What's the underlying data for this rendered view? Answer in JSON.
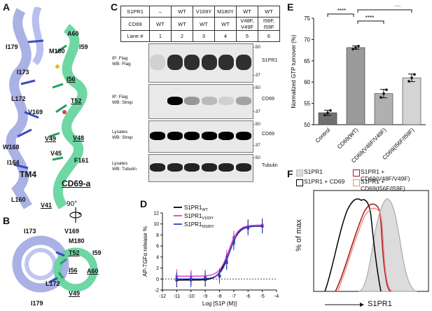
{
  "panels": {
    "A": {
      "letter": "A",
      "labels": {
        "A60": "A60",
        "I179": "I179",
        "M180": "M180",
        "I59": "I59",
        "I173": "I173",
        "I56": "I56",
        "L172": "L172",
        "T52": "T52",
        "V169": "V169",
        "V49": "V49",
        "V48": "V48",
        "W168": "W168",
        "V45": "V45",
        "I164": "I164",
        "F161": "F161",
        "TM4": "TM4",
        "CD69a": "CD69-a",
        "L160": "L160",
        "V41": "V41"
      },
      "rotation": "90°"
    },
    "B": {
      "letter": "B",
      "labels": {
        "I173": "I173",
        "V169": "V169",
        "M180": "M180",
        "T52": "T52",
        "I59": "I59",
        "I56": "I56",
        "A60": "A60",
        "L172": "L172",
        "V49": "V49",
        "I179": "I179"
      }
    },
    "C": {
      "letter": "C",
      "rows": [
        {
          "name": "S1PR1",
          "cells": [
            "–",
            "WT",
            "V169Y",
            "M180Y",
            "WT",
            "WT"
          ]
        },
        {
          "name": "CD69",
          "cells": [
            "WT",
            "WT",
            "WT",
            "WT",
            "V48F,\nV49F",
            "I56F,\nI59F"
          ]
        },
        {
          "name": "Lane #",
          "cells": [
            "1",
            "2",
            "3",
            "4",
            "5",
            "6"
          ]
        }
      ],
      "blots": [
        {
          "left_label": "IP: Flag\nWB: Flag",
          "right_label": "S1PR1",
          "markers": [
            "50",
            "37"
          ]
        },
        {
          "left_label": "IP: Flag\nWB: Strep",
          "right_label": "CD69",
          "markers": [
            "50",
            "37"
          ]
        },
        {
          "left_label": "Lysates\nWB: Strep",
          "right_label": "CD69",
          "markers": [
            "50",
            "37"
          ]
        },
        {
          "left_label": "Lysates\nWB: Tubulin",
          "right_label": "Tubulin",
          "markers": [
            "50"
          ]
        }
      ]
    },
    "D": {
      "letter": "D"
    },
    "E": {
      "letter": "E",
      "sig": [
        "****",
        "****",
        "***"
      ]
    },
    "F": {
      "letter": "F",
      "legend": [
        "S1PR1",
        "S1PR1 + CD69",
        "S1PR1 + CD69(V48F/V49F)",
        "S1PR1 + CD69(I56F/I59F)"
      ],
      "ylabel": "% of max",
      "xlabel": "S1PR1"
    }
  },
  "chart_data": [
    {
      "type": "line",
      "ylabel": "AP-TGFα release %",
      "xlabel": "Log [S1P (M)]",
      "xlim": [
        -12,
        -4
      ],
      "ylim": [
        -2,
        12
      ],
      "xticks": [
        "-12",
        "-11",
        "-10",
        "-9",
        "-8",
        "-7",
        "-6",
        "-5",
        "-4"
      ],
      "yticks": [
        "-2",
        "0",
        "2",
        "4",
        "6",
        "8",
        "10",
        "12"
      ],
      "series": [
        {
          "name": "S1PR1WT",
          "label_main": "S1PR1",
          "label_sub": "WT",
          "color": "#000000",
          "x": [
            -11,
            -10,
            -9,
            -8,
            -7.5,
            -7,
            -6,
            -5
          ],
          "y": [
            -0.2,
            0.1,
            -0.1,
            0.5,
            3,
            7,
            9.5,
            9.6
          ]
        },
        {
          "name": "S1PR1V169Y",
          "label_main": "S1PR1",
          "label_sub": "V169Y",
          "color": "#e040c8",
          "x": [
            -11,
            -10,
            -9,
            -8,
            -7.5,
            -7,
            -6,
            -5
          ],
          "y": [
            0.5,
            0.3,
            0.4,
            0.6,
            4,
            7.5,
            9.2,
            9.8
          ]
        },
        {
          "name": "S1PR1M180Y",
          "label_main": "S1PR1",
          "label_sub": "M180Y",
          "color": "#2a3fbf",
          "x": [
            -11,
            -10,
            -9,
            -8,
            -7.5,
            -7,
            -6,
            -5
          ],
          "y": [
            0,
            -0.2,
            0.2,
            0.6,
            3.2,
            6.5,
            9.3,
            9.6
          ]
        }
      ]
    },
    {
      "type": "bar",
      "ylabel": "Normalized GTP turnover (%)",
      "ylim": [
        50,
        75
      ],
      "yticks": [
        "50",
        "55",
        "60",
        "65",
        "70",
        "75"
      ],
      "categories": [
        "Control",
        "CD69(WT)",
        "CD69(V48F/V49F)",
        "CD69(I56F/I59F)"
      ],
      "values": [
        52.8,
        68.1,
        57.3,
        61.0
      ],
      "errors": [
        0.6,
        0.4,
        1.0,
        0.9
      ],
      "colors": [
        "#707070",
        "#9a9a9a",
        "#b0b0b0",
        "#d4d4d4"
      ]
    }
  ],
  "colors": {
    "helix_blue": "#9aa3e0",
    "helix_green": "#5fd39a"
  }
}
